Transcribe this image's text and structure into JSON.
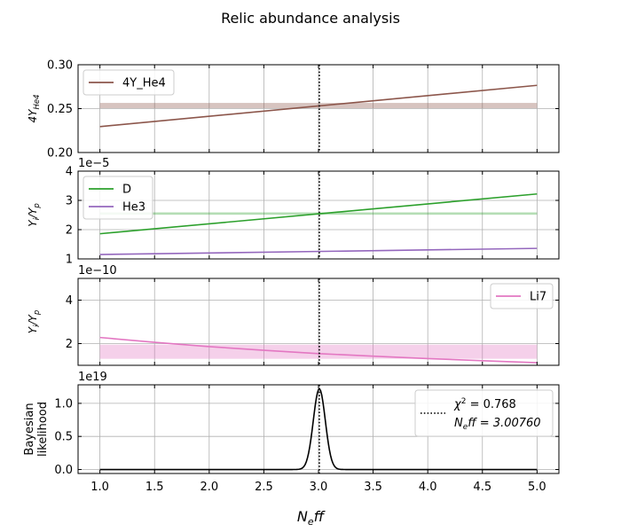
{
  "figure": {
    "title": "Relic abundance analysis",
    "xlabel_main": "N",
    "xlabel_sub": "e",
    "xlabel_tail": "ff"
  },
  "colors": {
    "he4": "#8c564b",
    "d": "#2ca02c",
    "he3": "#9467bd",
    "li7": "#e377c2",
    "likelihood": "#000000",
    "grid": "#b0b0b0"
  },
  "chart_data": [
    {
      "type": "line",
      "ylabel_main": "4Y",
      "ylabel_sub": "He4",
      "xlim": [
        0.8,
        5.2
      ],
      "ylim": [
        0.2,
        0.3
      ],
      "xticks": [
        1.0,
        1.5,
        2.0,
        2.5,
        3.0,
        3.5,
        4.0,
        4.5,
        5.0
      ],
      "yticks": [
        0.2,
        0.25,
        0.3
      ],
      "ytick_labels": [
        "0.20",
        "0.25",
        "0.30"
      ],
      "grid": true,
      "legend": "upper left",
      "series": [
        {
          "name": "4Y_He4",
          "color_key": "he4",
          "x": [
            1.0,
            5.0
          ],
          "y": [
            0.2295,
            0.2765
          ]
        }
      ],
      "bands": [
        {
          "color_key": "he4",
          "x": [
            1.0,
            5.0
          ],
          "y": [
            0.2505,
            0.2565
          ]
        }
      ],
      "vline": 3.0076
    },
    {
      "type": "line",
      "ylabel_main": "Y",
      "ylabel_sub": "i",
      "ylabel_div": "/Y",
      "ylabel_sub2": "p",
      "offset_text": "1e−5",
      "xlim": [
        0.8,
        5.2
      ],
      "ylim": [
        1,
        4
      ],
      "xticks": [
        1.0,
        1.5,
        2.0,
        2.5,
        3.0,
        3.5,
        4.0,
        4.5,
        5.0
      ],
      "yticks": [
        1,
        2,
        3,
        4
      ],
      "ytick_labels": [
        "1",
        "2",
        "3",
        "4"
      ],
      "grid": true,
      "legend": "upper left",
      "series": [
        {
          "name": "D",
          "color_key": "d",
          "x": [
            1.0,
            5.0
          ],
          "y": [
            1.86,
            3.22
          ]
        },
        {
          "name": "He3",
          "color_key": "he3",
          "x": [
            1.0,
            5.0
          ],
          "y": [
            1.15,
            1.36
          ]
        }
      ],
      "bands": [
        {
          "color_key": "d",
          "x": [
            1.0,
            5.0
          ],
          "y": [
            2.51,
            2.59
          ]
        }
      ],
      "vline": 3.0076
    },
    {
      "type": "line",
      "ylabel_main": "Y",
      "ylabel_sub": "i",
      "ylabel_div": "/Y",
      "ylabel_sub2": "p",
      "offset_text": "1e−10",
      "xlim": [
        0.8,
        5.2
      ],
      "ylim": [
        1.0,
        5.0
      ],
      "xticks": [
        1.0,
        1.5,
        2.0,
        2.5,
        3.0,
        3.5,
        4.0,
        4.5,
        5.0
      ],
      "yticks": [
        2,
        4
      ],
      "ytick_labels": [
        "2",
        "4"
      ],
      "grid": true,
      "legend": "upper right",
      "series": [
        {
          "name": "Li7",
          "color_key": "li7",
          "x": [
            1.0,
            1.5,
            2.0,
            2.5,
            3.0,
            3.5,
            4.0,
            4.5,
            5.0
          ],
          "y": [
            2.28,
            2.06,
            1.86,
            1.69,
            1.54,
            1.42,
            1.31,
            1.21,
            1.12
          ]
        }
      ],
      "bands": [
        {
          "color_key": "li7",
          "x": [
            1.0,
            5.0
          ],
          "y": [
            1.3,
            1.95
          ]
        }
      ],
      "vline": 3.0076
    },
    {
      "type": "line",
      "ylabel_lines": [
        "Bayesian",
        "likelihood"
      ],
      "offset_text": "1e19",
      "xlim": [
        0.8,
        5.2
      ],
      "ylim": [
        -0.06,
        1.28
      ],
      "xticks": [
        1.0,
        1.5,
        2.0,
        2.5,
        3.0,
        3.5,
        4.0,
        4.5,
        5.0
      ],
      "xtick_labels": [
        "1.0",
        "1.5",
        "2.0",
        "2.5",
        "3.0",
        "3.5",
        "4.0",
        "4.5",
        "5.0"
      ],
      "yticks": [
        0.0,
        0.5,
        1.0
      ],
      "ytick_labels": [
        "0.0",
        "0.5",
        "1.0"
      ],
      "grid": true,
      "legend": "upper right",
      "series": [
        {
          "name": "likelihood",
          "color_key": "likelihood",
          "gaussian": {
            "mu": 3.0076,
            "sigma": 0.055,
            "amp": 1.22,
            "x_from": 1.0,
            "x_to": 5.0
          }
        }
      ],
      "legend_lines": [
        {
          "main": "χ",
          "sup": "2",
          "tail": " = 0.768"
        },
        {
          "main": "N",
          "sub": "e",
          "tail": "ff = 3.00760"
        }
      ],
      "vline": 3.0076
    }
  ]
}
